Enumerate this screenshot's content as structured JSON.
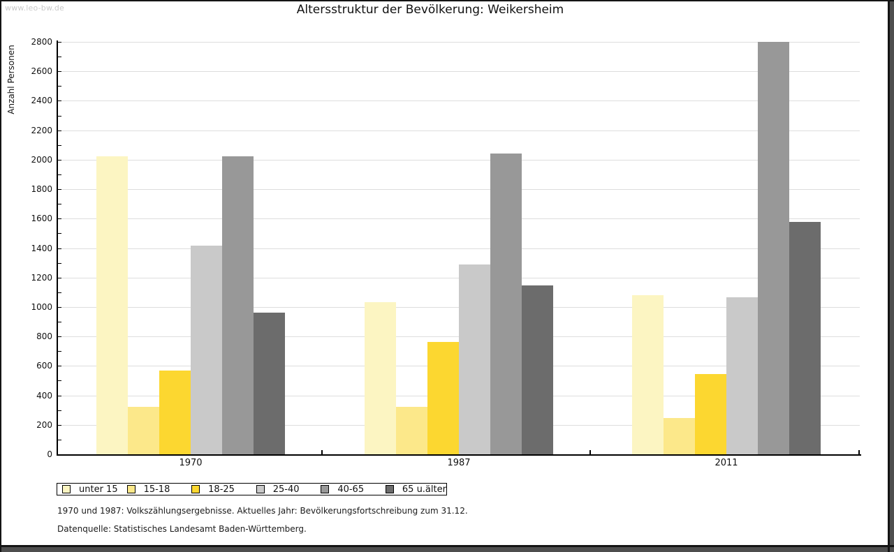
{
  "watermark": "www.leo-bw.de",
  "title": "Altersstruktur der Bevölkerung: Weikersheim",
  "chart_data": {
    "type": "bar",
    "title": "Altersstruktur der Bevölkerung: Weikersheim",
    "xlabel": "",
    "ylabel": "Anzahl Personen",
    "ylim": [
      0,
      2800
    ],
    "ytick_step": 200,
    "minor_tick_step": 100,
    "grid": "horizontal-major",
    "legend_position": "bottom-left-boxed",
    "categories": [
      "1970",
      "1987",
      "2011"
    ],
    "series": [
      {
        "name": "unter 15",
        "color": "#fcf5c2",
        "values": [
          2025,
          1035,
          1080
        ]
      },
      {
        "name": "15-18",
        "color": "#fce88a",
        "values": [
          320,
          320,
          245
        ]
      },
      {
        "name": "18-25",
        "color": "#fcd730",
        "values": [
          570,
          765,
          545
        ]
      },
      {
        "name": "25-40",
        "color": "#c9c9c9",
        "values": [
          1415,
          1290,
          1065
        ]
      },
      {
        "name": "40-65",
        "color": "#989898",
        "values": [
          2025,
          2040,
          2800
        ]
      },
      {
        "name": "65 u.älter",
        "color": "#6c6c6c",
        "values": [
          960,
          1145,
          1580
        ]
      }
    ]
  },
  "footnotes": [
    "1970 und 1987: Volkszählungsergebnisse. Aktuelles Jahr: Bevölkerungsfortschreibung zum 31.12.",
    "Datenquelle: Statistisches Landesamt Baden-Württemberg."
  ],
  "colors": {
    "frame_dark": "#141414",
    "frame_shadow": "#4e4e4e",
    "gridline": "#dddddd",
    "watermark": "#c9c9c9",
    "text": "#111111"
  }
}
